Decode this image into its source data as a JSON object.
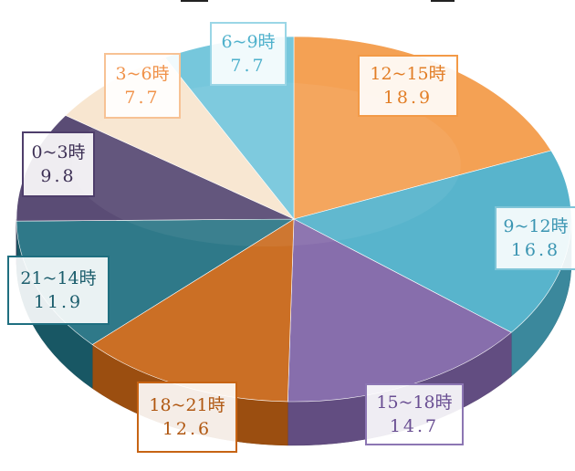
{
  "chart_data": {
    "type": "pie",
    "title": "",
    "slices": [
      {
        "label": "12~15時",
        "value": 18.9,
        "color": "#F39A47",
        "text_color": "#E27E26",
        "border": "#F39A47"
      },
      {
        "label": "9~12時",
        "value": 16.8,
        "color": "#4BAEC8",
        "text_color": "#3A95B2",
        "border": "#7FC5D8"
      },
      {
        "label": "15~18時",
        "value": 14.7,
        "color": "#7E63A6",
        "text_color": "#6A4F93",
        "border": "#8C76B3"
      },
      {
        "label": "18~21時",
        "value": 12.6,
        "color": "#C76414",
        "text_color": "#B05710",
        "border": "#C76414"
      },
      {
        "label": "21~14時",
        "value": 11.9,
        "color": "#1F6F80",
        "text_color": "#1B5D6C",
        "border": "#1F6F80"
      },
      {
        "label": "0~3時",
        "value": 9.8,
        "color": "#4E3E6B",
        "text_color": "#3D3055",
        "border": "#4E3E6B"
      },
      {
        "label": "3~6時",
        "value": 7.7,
        "color": "#F8E4CC",
        "text_color": "#F0924A",
        "border": "#F7C294"
      },
      {
        "label": "6~9時",
        "value": 7.7,
        "color": "#6CC3D9",
        "text_color": "#4FB1CC",
        "border": "#9AD6E6"
      }
    ]
  }
}
